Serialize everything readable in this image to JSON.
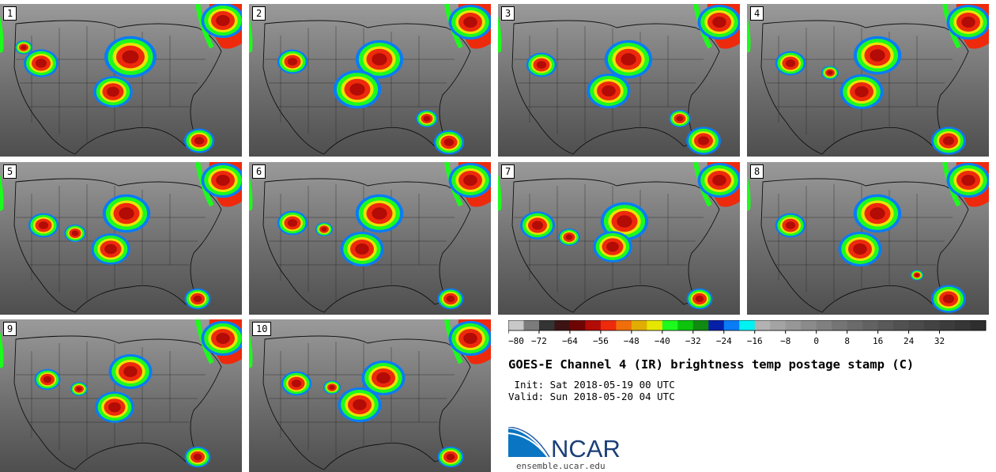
{
  "panels": [
    {
      "label": "1",
      "storms": [
        [
          165,
          72,
          1.2
        ],
        [
          52,
          80,
          0.8
        ],
        [
          143,
          116,
          0.9
        ],
        [
          282,
          26,
          1.0
        ],
        [
          30,
          60,
          0.4
        ],
        [
          252,
          178,
          0.7
        ]
      ]
    },
    {
      "label": "2",
      "storms": [
        [
          480,
          75,
          1.1
        ],
        [
          452,
          113,
          1.1
        ],
        [
          370,
          78,
          0.7
        ],
        [
          595,
          28,
          1.0
        ],
        [
          568,
          180,
          0.7
        ],
        [
          540,
          150,
          0.5
        ]
      ]
    },
    {
      "label": "3",
      "storms": [
        [
          795,
          75,
          1.1
        ],
        [
          770,
          115,
          1.0
        ],
        [
          685,
          82,
          0.7
        ],
        [
          910,
          28,
          1.0
        ],
        [
          890,
          178,
          0.8
        ],
        [
          860,
          150,
          0.5
        ]
      ]
    },
    {
      "label": "4",
      "storms": [
        [
          1110,
          70,
          1.1
        ],
        [
          1090,
          116,
          1.0
        ],
        [
          1000,
          80,
          0.7
        ],
        [
          1225,
          28,
          1.0
        ],
        [
          1200,
          178,
          0.8
        ],
        [
          1050,
          92,
          0.4
        ]
      ]
    },
    {
      "label": "5",
      "storms": [
        [
          160,
          270,
          1.1
        ],
        [
          140,
          315,
          0.9
        ],
        [
          55,
          285,
          0.7
        ],
        [
          282,
          228,
          1.0
        ],
        [
          250,
          378,
          0.6
        ],
        [
          95,
          295,
          0.5
        ]
      ]
    },
    {
      "label": "6",
      "storms": [
        [
          480,
          270,
          1.1
        ],
        [
          458,
          315,
          1.0
        ],
        [
          370,
          282,
          0.7
        ],
        [
          595,
          228,
          1.0
        ],
        [
          570,
          378,
          0.6
        ],
        [
          410,
          290,
          0.4
        ]
      ]
    },
    {
      "label": "7",
      "storms": [
        [
          790,
          280,
          1.1
        ],
        [
          775,
          312,
          0.9
        ],
        [
          680,
          285,
          0.8
        ],
        [
          910,
          228,
          1.0
        ],
        [
          885,
          378,
          0.6
        ],
        [
          720,
          300,
          0.5
        ]
      ]
    },
    {
      "label": "8",
      "storms": [
        [
          1110,
          270,
          1.1
        ],
        [
          1088,
          315,
          1.0
        ],
        [
          1000,
          285,
          0.7
        ],
        [
          1225,
          228,
          1.0
        ],
        [
          1200,
          378,
          0.8
        ],
        [
          1160,
          348,
          0.3
        ]
      ]
    },
    {
      "label": "9",
      "storms": [
        [
          165,
          470,
          1.0
        ],
        [
          145,
          515,
          0.9
        ],
        [
          60,
          480,
          0.6
        ],
        [
          282,
          428,
          1.0
        ],
        [
          250,
          578,
          0.6
        ],
        [
          100,
          492,
          0.4
        ]
      ]
    },
    {
      "label": "10",
      "storms": [
        [
          485,
          478,
          1.0
        ],
        [
          455,
          512,
          1.0
        ],
        [
          375,
          485,
          0.7
        ],
        [
          595,
          428,
          1.0
        ],
        [
          570,
          578,
          0.6
        ],
        [
          420,
          490,
          0.4
        ]
      ]
    }
  ],
  "colorbar": {
    "colors": [
      "#c8c8c8",
      "#7c7c7c",
      "#343434",
      "#3d1414",
      "#6e0404",
      "#b30b06",
      "#ee2a0c",
      "#f06e0b",
      "#e1ad03",
      "#e6e600",
      "#1dfa1d",
      "#0dc40d",
      "#118a11",
      "#0520a8",
      "#0a7cf5",
      "#00f2f2",
      "#b2b2b2",
      "#a4a4a4",
      "#979797",
      "#8b8b8b",
      "#808080",
      "#757575",
      "#6b6b6b",
      "#626262",
      "#595959",
      "#515151",
      "#4a4a4a",
      "#434343",
      "#3c3c3c",
      "#363636",
      "#2e2e2e"
    ],
    "ticks": [
      "−80",
      "−72",
      "−64",
      "−56",
      "−48",
      "−40",
      "−32",
      "−24",
      "−16",
      "−8",
      "0",
      "8",
      "16",
      "24",
      "32"
    ]
  },
  "title": "GOES-E Channel 4 (IR) brightness temp postage stamp (C)",
  "init": " Init: Sat 2018-05-19 00 UTC",
  "valid": "Valid: Sun 2018-05-20 04 UTC",
  "logo_text": "NCAR",
  "website": "ensemble.ucar.edu"
}
